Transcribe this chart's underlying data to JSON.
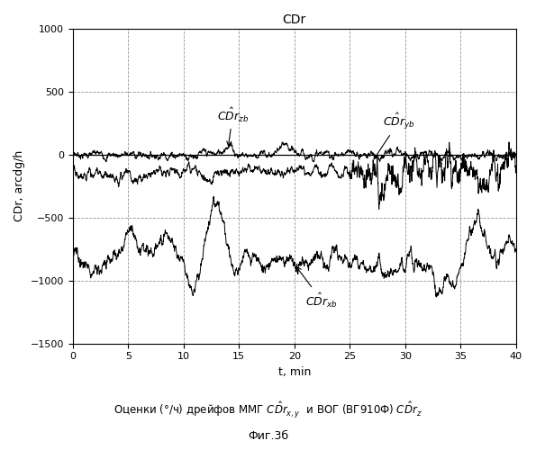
{
  "title": "CDr",
  "xlabel": "t, min",
  "ylabel": "CDr, arcdg/h",
  "xlim": [
    0,
    40
  ],
  "ylim": [
    -1500,
    1000
  ],
  "xticks": [
    0,
    5,
    10,
    15,
    20,
    25,
    30,
    35,
    40
  ],
  "yticks": [
    -1500,
    -1000,
    -500,
    0,
    500,
    1000
  ],
  "caption_line1": "Оценки (°/ч) дрейфов ММГ $C\\hat{D}r_{x,y}$  и ВОГ (ВГ910Ф) $C\\hat{D}r_z$",
  "caption_line2": "Фиг.3б",
  "label_zb": "$C\\hat{D}r_{zb}$",
  "label_yb": "$C\\hat{D}r_{yb}$",
  "label_xb": "$C\\hat{D}r_{xb}$",
  "line_color": "#000000",
  "background_color": "#ffffff",
  "figsize": [
    5.95,
    5.0
  ],
  "dpi": 100,
  "seed": 7,
  "n_points": 2000
}
